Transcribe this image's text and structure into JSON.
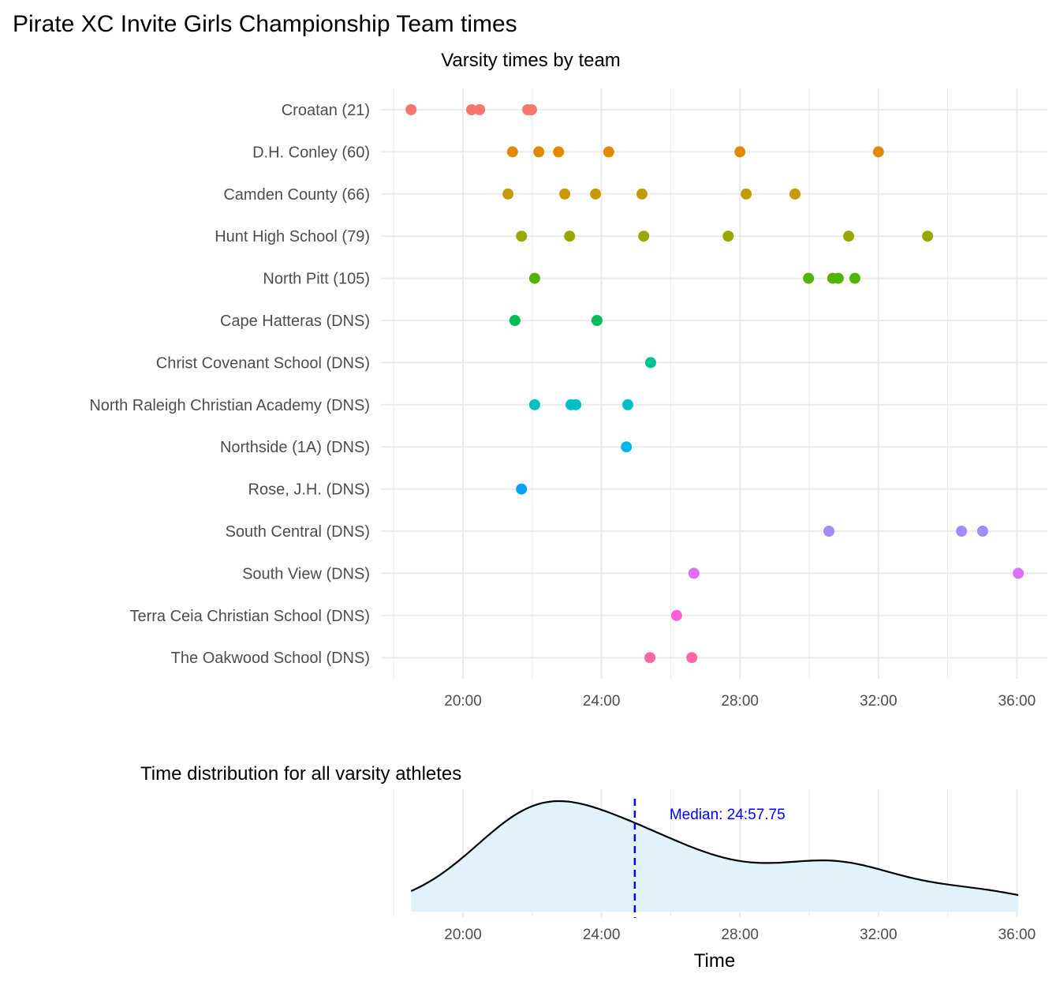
{
  "chart_data": [
    {
      "type": "scatter",
      "title": "Pirate XC Invite Girls Championship Team times",
      "subtitle": "Varsity times by team",
      "xlabel": "",
      "ylabel": "",
      "x_unit": "minutes",
      "xlim": [
        17.63,
        36.88
      ],
      "x_ticks": [
        20,
        24,
        28,
        32,
        36
      ],
      "x_tick_labels": [
        "20:00",
        "24:00",
        "28:00",
        "32:00",
        "36:00"
      ],
      "grid": true,
      "series": [
        {
          "name": "Croatan (21)",
          "color": "#F8766D",
          "values": [
            18.5,
            20.25,
            20.48,
            21.87,
            21.98
          ]
        },
        {
          "name": "D.H. Conley (60)",
          "color": "#E38900",
          "values": [
            21.43,
            22.19,
            22.76,
            24.21,
            28.0,
            32.0
          ]
        },
        {
          "name": "Camden County (66)",
          "color": "#C49A00",
          "values": [
            21.3,
            22.94,
            23.83,
            25.17,
            28.18,
            29.59
          ]
        },
        {
          "name": "Hunt High School (79)",
          "color": "#99A800",
          "values": [
            21.69,
            23.08,
            25.22,
            27.66,
            31.14,
            33.42
          ]
        },
        {
          "name": "North Pitt (105)",
          "color": "#53B400",
          "values": [
            22.07,
            29.98,
            30.68,
            30.84,
            31.32
          ]
        },
        {
          "name": "Cape Hatteras (DNS)",
          "color": "#00BC56",
          "values": [
            21.5,
            23.87
          ]
        },
        {
          "name": "Christ Covenant School (DNS)",
          "color": "#00C094",
          "values": [
            25.42
          ]
        },
        {
          "name": "North Raleigh Christian Academy (DNS)",
          "color": "#00BFC4",
          "values": [
            22.07,
            23.12,
            23.26,
            24.76
          ]
        },
        {
          "name": "Northside (1A) (DNS)",
          "color": "#00B6EB",
          "values": [
            24.72
          ]
        },
        {
          "name": "Rose, J.H. (DNS)",
          "color": "#06A4FF",
          "values": [
            21.69
          ]
        },
        {
          "name": "South Central (DNS)",
          "color": "#A58AFF",
          "values": [
            30.57,
            34.4,
            35.01
          ]
        },
        {
          "name": "South View (DNS)",
          "color": "#DF70F8",
          "values": [
            26.67,
            36.04
          ]
        },
        {
          "name": "Terra Ceia Christian School (DNS)",
          "color": "#FB61D7",
          "values": [
            26.17
          ]
        },
        {
          "name": "The Oakwood School (DNS)",
          "color": "#FF66A8",
          "values": [
            25.4,
            26.61
          ]
        }
      ]
    },
    {
      "type": "area",
      "title": "Time distribution for all varsity athletes",
      "xlabel": "Time",
      "ylabel": "",
      "xlim": [
        17.63,
        36.88
      ],
      "x_ticks": [
        20,
        24,
        28,
        32,
        36
      ],
      "x_tick_labels": [
        "20:00",
        "24:00",
        "28:00",
        "32:00",
        "36:00"
      ],
      "fill_color": "#E0F1FA",
      "line_color": "#000000",
      "median": 24.9625,
      "median_label": "Median: 24:57.75",
      "median_color": "#0000FF",
      "bandwidth_minutes": 1.6
    }
  ]
}
